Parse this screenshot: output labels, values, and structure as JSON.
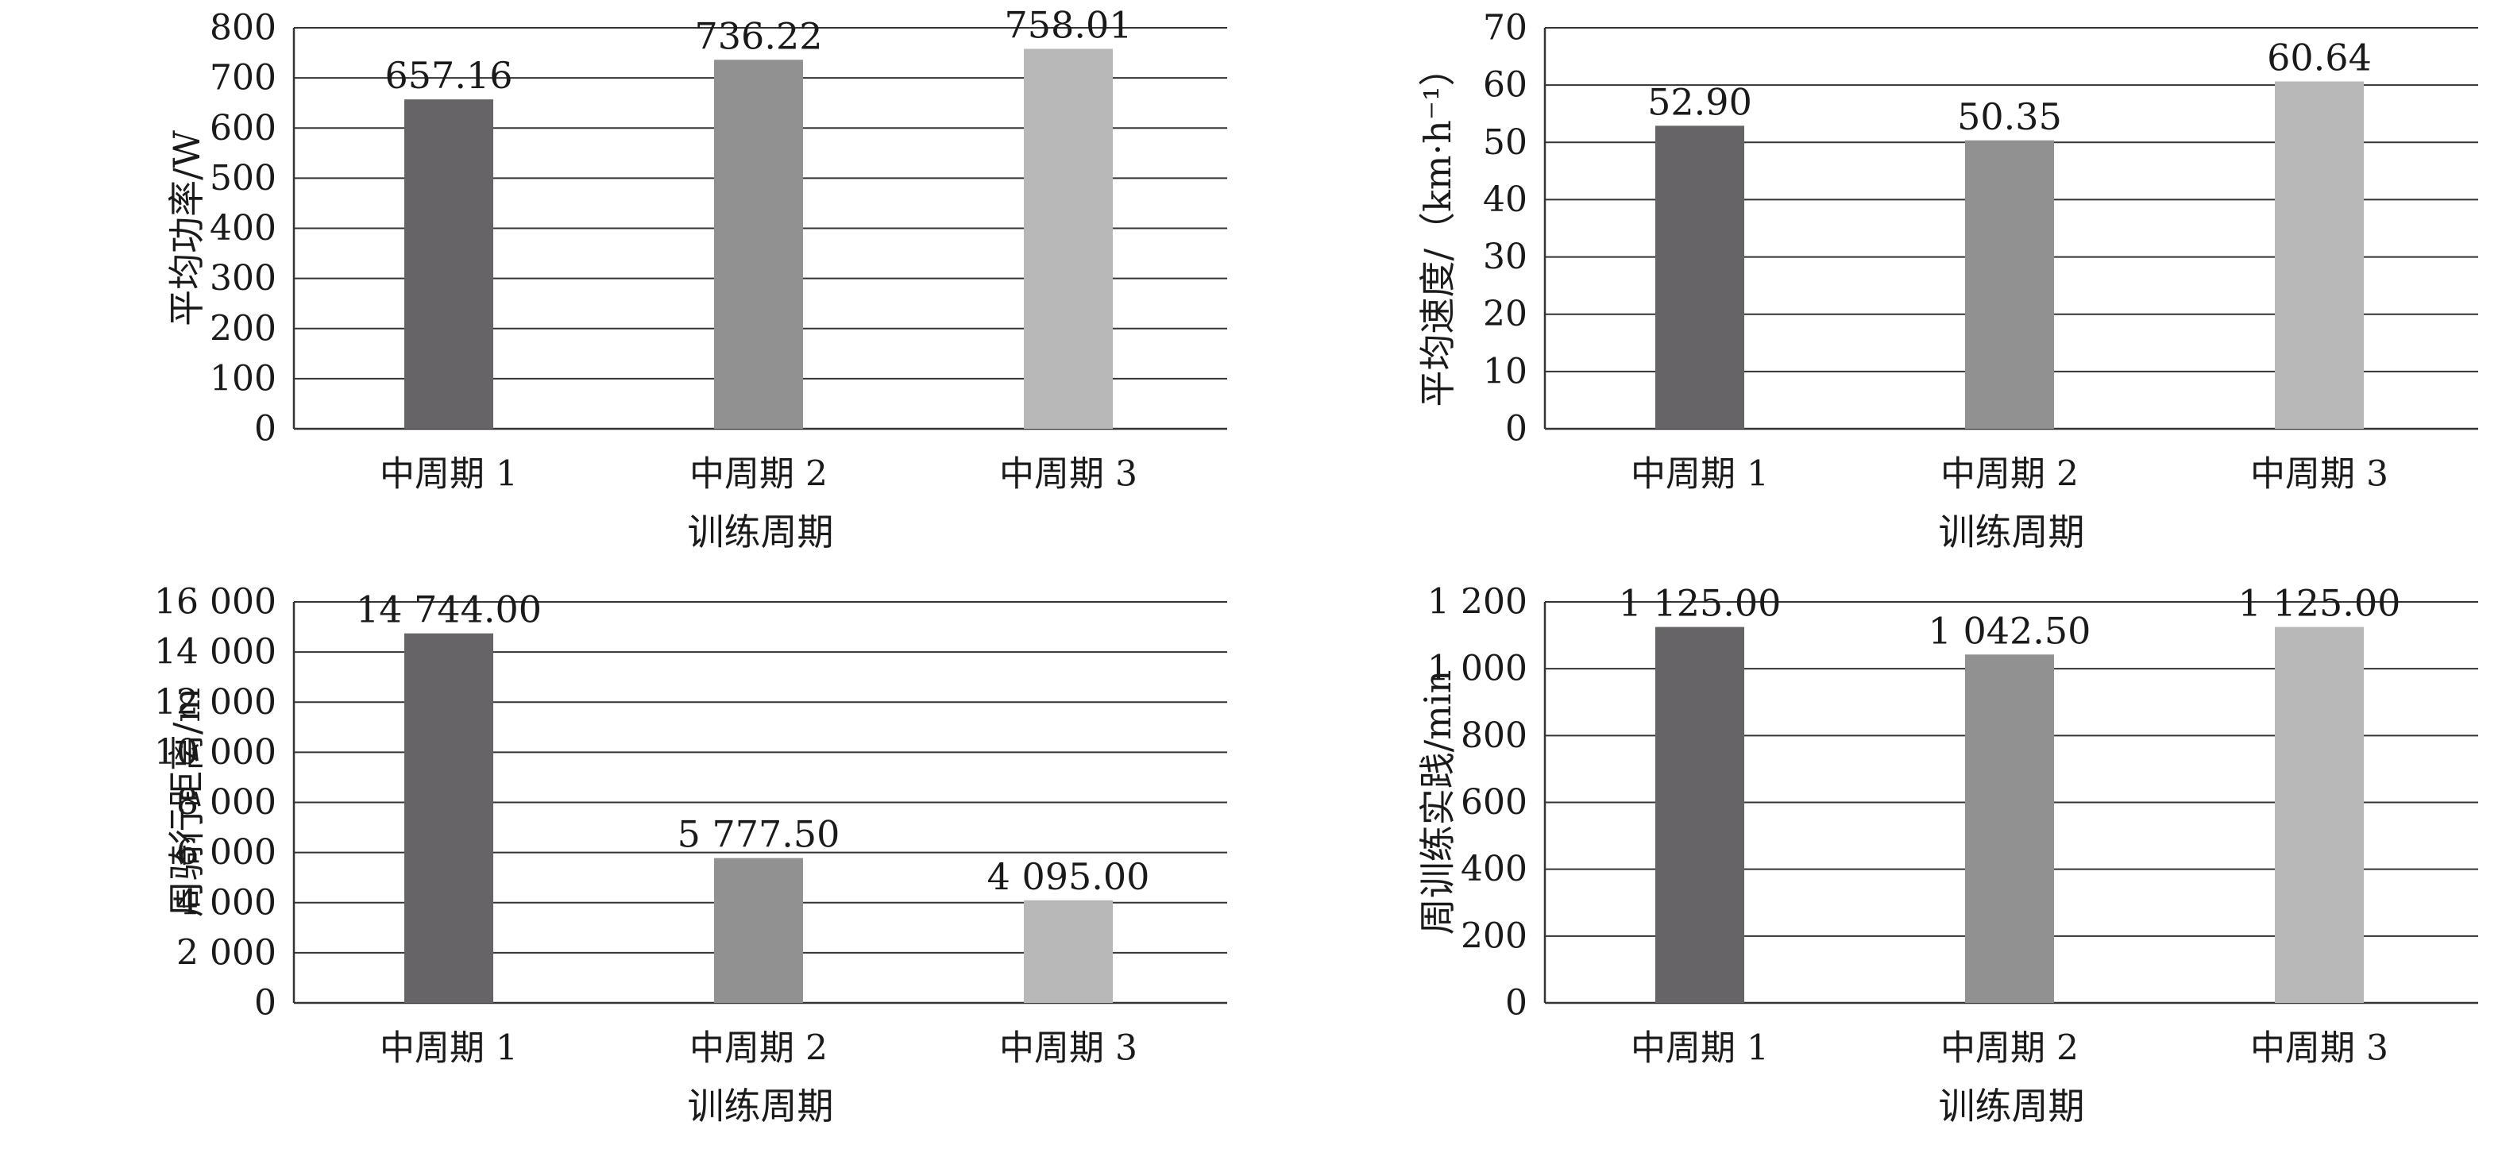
{
  "chart_data": [
    {
      "type": "bar",
      "categories": [
        "中周期 1",
        "中周期 2",
        "中周期 3"
      ],
      "values": [
        657.16,
        736.22,
        758.01
      ],
      "value_labels": [
        "657.16",
        "736.22",
        "758.01"
      ],
      "xlabel": "训练周期",
      "ylabel": "平均功率/W",
      "ylim": [
        0,
        800
      ],
      "yticks": [
        0,
        100,
        200,
        300,
        400,
        500,
        600,
        700,
        800
      ],
      "ytick_labels": [
        "0",
        "100",
        "200",
        "300",
        "400",
        "500",
        "600",
        "700",
        "800"
      ],
      "grid": true,
      "colors": [
        "#666466",
        "#929192",
        "#b9b8b9"
      ]
    },
    {
      "type": "bar",
      "categories": [
        "中周期 1",
        "中周期 2",
        "中周期 3"
      ],
      "values": [
        52.9,
        50.35,
        60.64
      ],
      "value_labels": [
        "52.90",
        "50.35",
        "60.64"
      ],
      "xlabel": "训练周期",
      "ylabel": "平均速度/（km·h⁻¹）",
      "ylim": [
        0,
        70
      ],
      "yticks": [
        0,
        10,
        20,
        30,
        40,
        50,
        60,
        70
      ],
      "ytick_labels": [
        "0",
        "10",
        "20",
        "30",
        "40",
        "50",
        "60",
        "70"
      ],
      "grid": true,
      "colors": [
        "#666466",
        "#929192",
        "#b9b8b9"
      ]
    },
    {
      "type": "bar",
      "categories": [
        "中周期 1",
        "中周期 2",
        "中周期 3"
      ],
      "values": [
        14744.0,
        5777.5,
        4095.0
      ],
      "value_labels": [
        "14 744.00",
        "5 777.50",
        "4 095.00"
      ],
      "xlabel": "训练周期",
      "ylabel": "周骑行距离/m",
      "ylim": [
        0,
        16000
      ],
      "yticks": [
        0,
        2000,
        4000,
        6000,
        8000,
        10000,
        12000,
        14000,
        16000
      ],
      "ytick_labels": [
        "0",
        "2 000",
        "4 000",
        "6 000",
        "8 000",
        "10 000",
        "12 000",
        "14 000",
        "16 000"
      ],
      "grid": true,
      "colors": [
        "#666466",
        "#929192",
        "#b9b8b9"
      ]
    },
    {
      "type": "bar",
      "categories": [
        "中周期 1",
        "中周期 2",
        "中周期 3"
      ],
      "values": [
        1125.0,
        1042.5,
        1125.0
      ],
      "value_labels": [
        "1 125.00",
        "1 042.50",
        "1 125.00"
      ],
      "xlabel": "训练周期",
      "ylabel": "周训练实践/min",
      "ylim": [
        0,
        1200
      ],
      "yticks": [
        0,
        200,
        400,
        600,
        800,
        1000,
        1200
      ],
      "ytick_labels": [
        "0",
        "200",
        "400",
        "600",
        "800",
        "1 000",
        "1 200"
      ],
      "grid": true,
      "colors": [
        "#666466",
        "#929192",
        "#b9b8b9"
      ]
    }
  ]
}
